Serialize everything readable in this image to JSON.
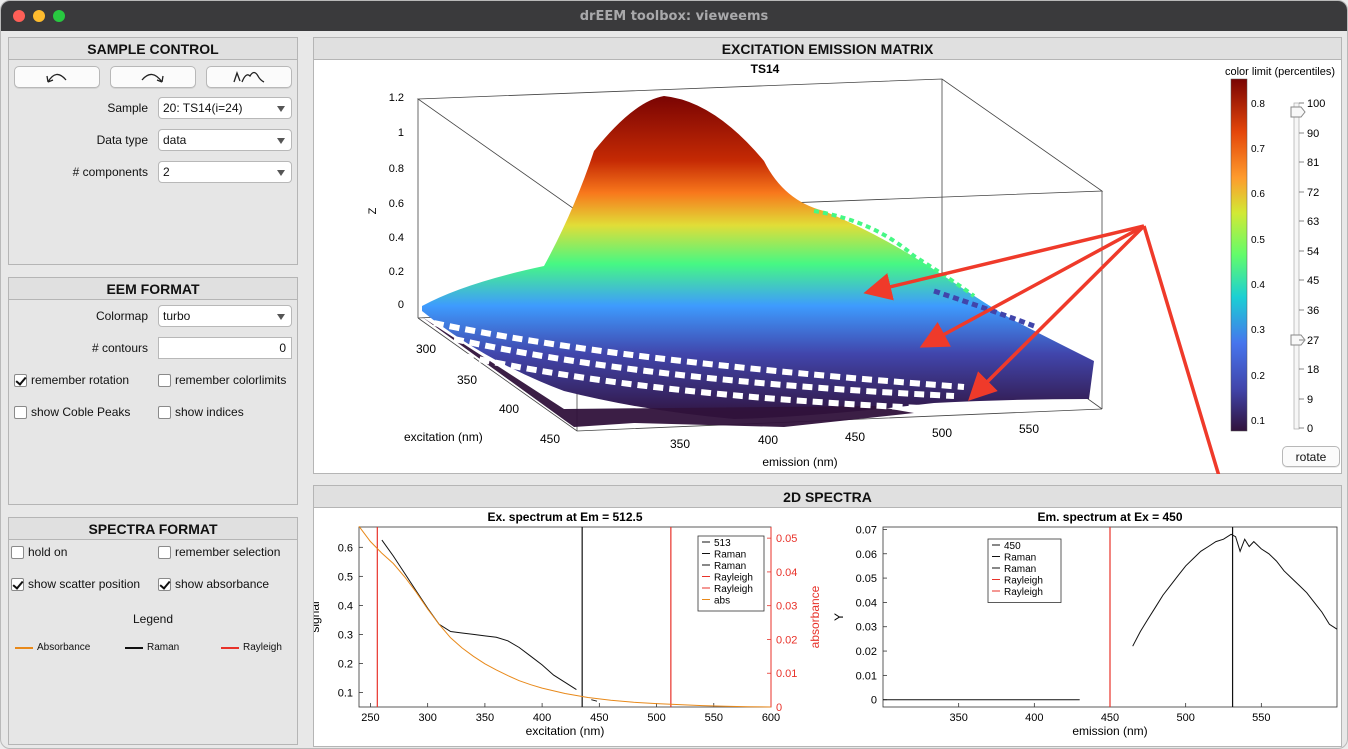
{
  "window": {
    "title": "drEEM toolbox: vieweems"
  },
  "sample_control": {
    "title": "SAMPLE CONTROL",
    "sample_label": "Sample",
    "sample_value": "20: TS14(i=24)",
    "datatype_label": "Data type",
    "datatype_value": "data",
    "components_label": "# components",
    "components_value": "2"
  },
  "eem_format": {
    "title": "EEM FORMAT",
    "colormap_label": "Colormap",
    "colormap_value": "turbo",
    "contours_label": "# contours",
    "contours_value": "0",
    "remember_rotation": "remember rotation",
    "remember_colorlimits": "remember colorlimits",
    "show_coble": "show Coble Peaks",
    "show_indices": "show indices"
  },
  "spectra_format": {
    "title": "SPECTRA FORMAT",
    "hold_on": "hold on",
    "remember_selection": "remember selection",
    "show_scatter": "show scatter position",
    "show_absorbance": "show absorbance",
    "legend_title": "Legend",
    "legend_items": [
      {
        "label": "Absorbance",
        "color": "#e8891a"
      },
      {
        "label": "Raman",
        "color": "#111111"
      },
      {
        "label": "Rayleigh",
        "color": "#e8322a"
      }
    ]
  },
  "eem_panel": {
    "title": "EXCITATION EMISSION MATRIX",
    "plot_title": "TS14",
    "zlabel": "Z",
    "xlabel": "excitation (nm)",
    "ylabel": "emission (nm)",
    "z_ticks": [
      "0",
      "0.2",
      "0.4",
      "0.6",
      "0.8",
      "1",
      "1.2"
    ],
    "ex_ticks": [
      "300",
      "350",
      "400",
      "450"
    ],
    "em_ticks": [
      "350",
      "400",
      "450",
      "500",
      "550"
    ],
    "colorbar_title": "color limit (percentiles)",
    "colorbar_ticks": [
      "0.8",
      "0.7",
      "0.6",
      "0.5",
      "0.4",
      "0.3",
      "0.2",
      "0.1"
    ],
    "slider_ticks": [
      "100",
      "90",
      "81",
      "72",
      "63",
      "54",
      "45",
      "36",
      "27",
      "18",
      "9",
      "0"
    ],
    "rotate_label": "rotate",
    "colors": {
      "arrow": "#ef3a2a"
    }
  },
  "spectra_panel": {
    "title": "2D SPECTRA"
  },
  "chart_data": [
    {
      "type": "line",
      "title": "Ex. spectrum at Em = 512.5",
      "xlabel": "excitation (nm)",
      "ylabel": "signal",
      "y2label": "absorbance",
      "xlim": [
        240,
        600
      ],
      "ylim": [
        0.05,
        0.67
      ],
      "y2lim": [
        0,
        0.0533
      ],
      "x_ticks": [
        "250",
        "300",
        "350",
        "400",
        "450",
        "500",
        "550",
        "600"
      ],
      "y_ticks": [
        "0.1",
        "0.2",
        "0.3",
        "0.4",
        "0.5",
        "0.6"
      ],
      "y2_ticks": [
        "0",
        "0.01",
        "0.02",
        "0.03",
        "0.04",
        "0.05"
      ],
      "legend": [
        "513",
        "Raman",
        "Raman",
        "Rayleigh",
        "Rayleigh",
        "abs"
      ],
      "vlines": [
        {
          "x": 256,
          "color": "#e8322a"
        },
        {
          "x": 435,
          "color": "#111111"
        },
        {
          "x": 512.5,
          "color": "#e8322a"
        }
      ],
      "series": [
        {
          "name": "513",
          "color": "#111111",
          "x": [
            260,
            270,
            280,
            290,
            300,
            310,
            320,
            330,
            340,
            350,
            360,
            370,
            380,
            390,
            400,
            410,
            420,
            430
          ],
          "y": [
            0.625,
            0.57,
            0.51,
            0.45,
            0.39,
            0.335,
            0.31,
            0.305,
            0.3,
            0.295,
            0.29,
            0.278,
            0.255,
            0.225,
            0.195,
            0.16,
            0.135,
            0.11
          ]
        },
        {
          "name": "513",
          "color": "#111111",
          "x": [
            443,
            448
          ],
          "y": [
            0.075,
            0.07
          ]
        },
        {
          "name": "abs",
          "color": "#e8891a",
          "axis": "y2",
          "x": [
            240,
            250,
            260,
            270,
            280,
            290,
            300,
            310,
            320,
            330,
            340,
            350,
            360,
            370,
            380,
            390,
            400,
            420,
            440,
            460,
            480,
            500,
            520,
            540,
            560,
            580,
            600
          ],
          "y": [
            0.0535,
            0.049,
            0.0455,
            0.0425,
            0.0385,
            0.034,
            0.029,
            0.0245,
            0.0205,
            0.0175,
            0.015,
            0.0128,
            0.011,
            0.0093,
            0.0078,
            0.0066,
            0.0056,
            0.004,
            0.0028,
            0.002,
            0.0014,
            0.001,
            0.0007,
            0.0004,
            0.0002,
            0.0001,
            0.0
          ]
        }
      ]
    },
    {
      "type": "line",
      "title": "Em. spectrum at Ex = 450",
      "xlabel": "emission (nm)",
      "ylabel": "Y",
      "xlim": [
        300,
        600
      ],
      "ylim": [
        -0.003,
        0.071
      ],
      "x_ticks": [
        "350",
        "400",
        "450",
        "500",
        "550"
      ],
      "y_ticks": [
        "0",
        "0.01",
        "0.02",
        "0.03",
        "0.04",
        "0.05",
        "0.06",
        "0.07"
      ],
      "legend": [
        "450",
        "Raman",
        "Raman",
        "Rayleigh",
        "Rayleigh"
      ],
      "vlines": [
        {
          "x": 450,
          "color": "#e8322a"
        },
        {
          "x": 531,
          "color": "#111111"
        }
      ],
      "series": [
        {
          "name": "450",
          "color": "#111111",
          "x": [
            300,
            430
          ],
          "y": [
            0,
            0
          ]
        },
        {
          "name": "450",
          "color": "#111111",
          "x": [
            465,
            470,
            475,
            480,
            485,
            490,
            495,
            500,
            505,
            510,
            515,
            520,
            525,
            530,
            533,
            536,
            539,
            542,
            545,
            550,
            555,
            560,
            565,
            570,
            575,
            580,
            585,
            590,
            595,
            600
          ],
          "y": [
            0.022,
            0.028,
            0.033,
            0.038,
            0.043,
            0.047,
            0.051,
            0.055,
            0.058,
            0.061,
            0.063,
            0.065,
            0.066,
            0.068,
            0.067,
            0.061,
            0.066,
            0.063,
            0.065,
            0.062,
            0.06,
            0.057,
            0.053,
            0.05,
            0.047,
            0.044,
            0.04,
            0.036,
            0.031,
            0.029
          ]
        }
      ]
    }
  ]
}
